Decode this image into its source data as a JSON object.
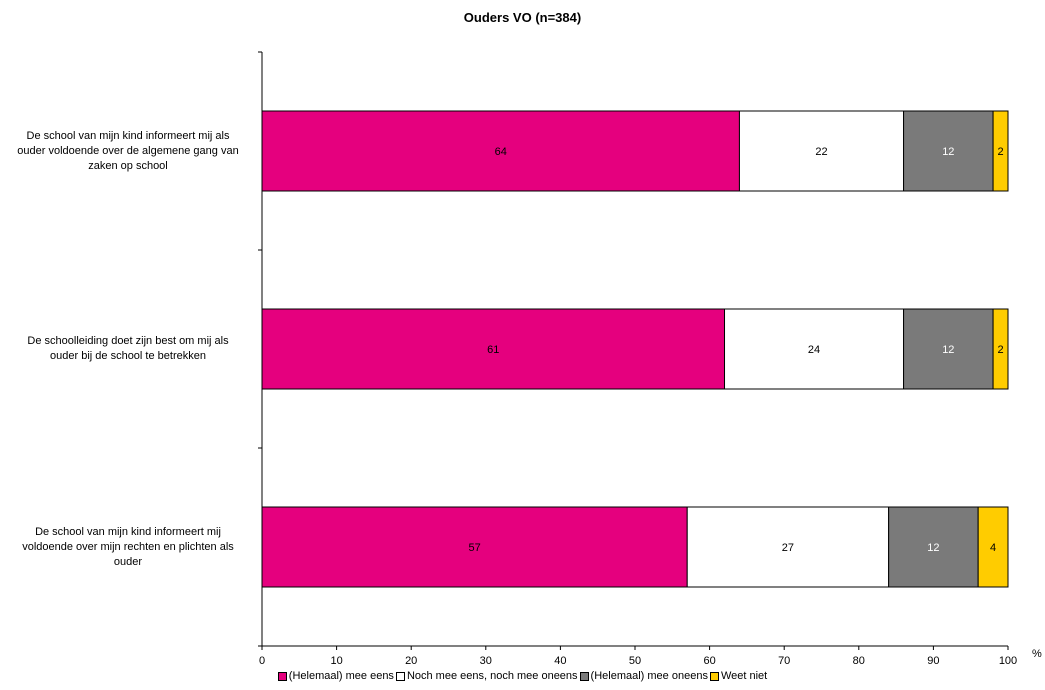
{
  "chart_data": {
    "type": "bar",
    "orientation": "horizontal",
    "stacked": true,
    "title": "Ouders VO (n=384)",
    "categories": [
      "De school van mijn kind informeert mij als ouder voldoende over de algemene gang van zaken op school",
      "De schoolleiding doet zijn best om mij als ouder bij de school te betrekken",
      "De school van mijn kind informeert mij voldoende over mijn rechten en plichten als ouder"
    ],
    "category_lines": [
      [
        "De school van mijn kind informeert mij als",
        "ouder voldoende over de algemene gang van",
        "zaken op school"
      ],
      [
        "De schoolleiding doet zijn best om mij als",
        "ouder bij de school te betrekken"
      ],
      [
        "De school van mijn kind informeert mij",
        "voldoende over mijn rechten en plichten als",
        "ouder"
      ]
    ],
    "series": [
      {
        "name": "(Helemaal) mee eens",
        "values": [
          64,
          61,
          57
        ],
        "color": "#e5007e"
      },
      {
        "name": "Noch mee eens, noch mee oneens",
        "values": [
          22,
          24,
          27
        ],
        "color": "#ffffff"
      },
      {
        "name": "(Helemaal) mee oneens",
        "values": [
          12,
          12,
          12
        ],
        "color": "#7a7a7a"
      },
      {
        "name": "Weet niet",
        "values": [
          2,
          2,
          4
        ],
        "color": "#ffcc00"
      }
    ],
    "segment_extents": [
      [
        64,
        22,
        12,
        2
      ],
      [
        62,
        24,
        12,
        2
      ],
      [
        57,
        27,
        12,
        4
      ]
    ],
    "xlim": [
      0,
      100
    ],
    "xticks": [
      "0",
      "10",
      "20",
      "30",
      "40",
      "50",
      "60",
      "70",
      "80",
      "90",
      "100"
    ],
    "xunit": "%",
    "grid": false,
    "legend_position": "bottom"
  }
}
